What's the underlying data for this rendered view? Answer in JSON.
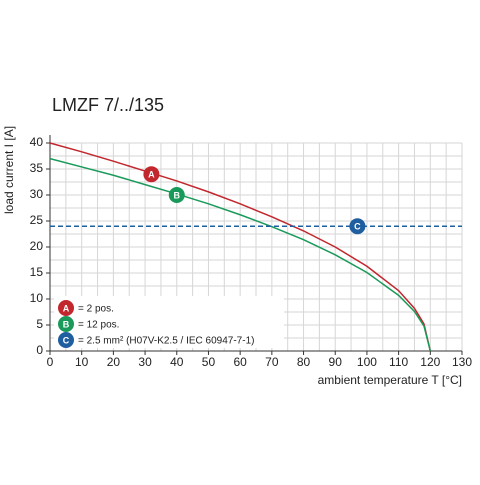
{
  "chart_data": {
    "type": "line",
    "title": "LMZF 7/../135",
    "xlabel": "ambient temperature T [°C]",
    "ylabel": "load current I [A]",
    "xlim": [
      0,
      130
    ],
    "xticks": [
      0,
      10,
      20,
      30,
      40,
      50,
      60,
      70,
      80,
      90,
      100,
      110,
      120,
      130
    ],
    "ylim": [
      0,
      40
    ],
    "yticks": [
      0,
      5,
      10,
      15,
      20,
      25,
      30,
      35,
      40
    ],
    "grid": true,
    "series": [
      {
        "name": "= 2 pos.",
        "badge": "A",
        "color": "#c1272d",
        "badge_at": [
          32,
          34
        ],
        "x": [
          0,
          10,
          20,
          30,
          40,
          50,
          60,
          70,
          80,
          90,
          100,
          110,
          115,
          118,
          120
        ],
        "values": [
          40,
          38.3,
          36.5,
          34.6,
          32.7,
          30.6,
          28.3,
          25.8,
          23.1,
          20.0,
          16.3,
          11.6,
          8.2,
          5.2,
          0
        ]
      },
      {
        "name": "= 12 pos.",
        "badge": "B",
        "color": "#1a9a5a",
        "badge_at": [
          40,
          30
        ],
        "x": [
          0,
          10,
          20,
          30,
          40,
          50,
          60,
          70,
          80,
          90,
          100,
          110,
          115,
          118,
          120
        ],
        "values": [
          37,
          35.4,
          33.8,
          32.0,
          30.2,
          28.3,
          26.2,
          23.9,
          21.4,
          18.5,
          15.1,
          10.7,
          7.6,
          4.8,
          0
        ]
      },
      {
        "name": "= 2.5 mm² (H07V-K2.5 / IEC 60947-7-1)",
        "badge": "C",
        "color": "#1f5fa0",
        "badge_at": [
          97,
          24
        ],
        "dashed": true,
        "x": [
          0,
          130
        ],
        "values": [
          24,
          24
        ]
      }
    ]
  }
}
